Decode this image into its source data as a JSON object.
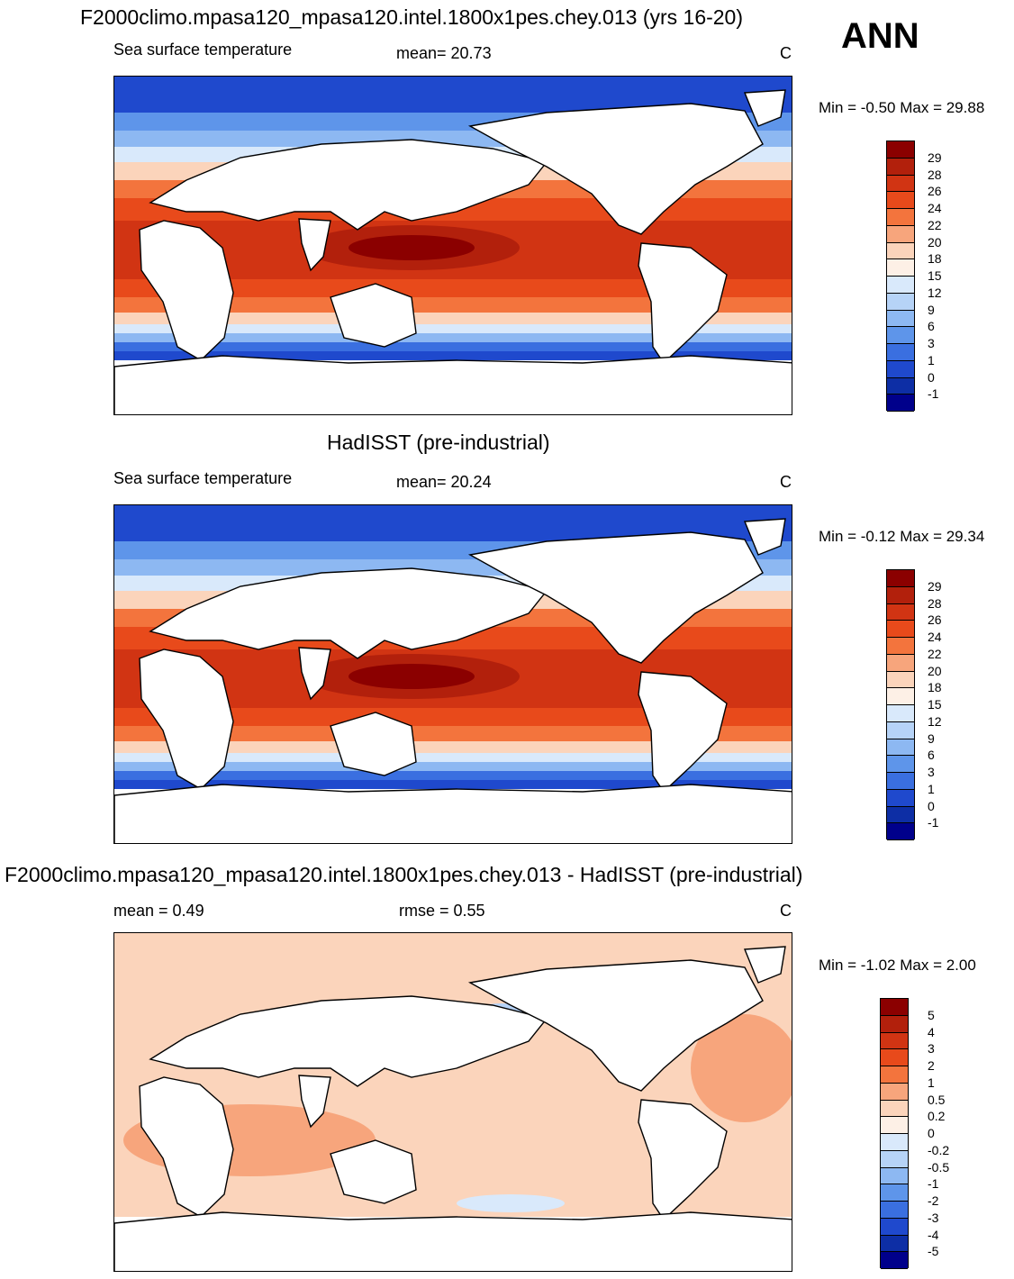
{
  "season": "ANN",
  "panels": [
    {
      "title": "F2000climo.mpasa120_mpasa120.intel.1800x1pes.chey.013 (yrs 16-20)",
      "left_label": "Sea surface temperature",
      "center_label": "mean=  20.73",
      "right_label": "C",
      "minmax": "Min =  -0.50 Max =  29.88"
    },
    {
      "title": "HadISST (pre-industrial)",
      "left_label": "Sea surface temperature",
      "center_label": "mean=  20.24",
      "right_label": "C",
      "minmax": "Min =  -0.12 Max =  29.34"
    },
    {
      "title": "F2000climo.mpasa120_mpasa120.intel.1800x1pes.chey.013 - HadISST (pre-industrial)",
      "left_label": "mean =   0.49",
      "center_label": "rmse =   0.55",
      "right_label": "C",
      "minmax": "Min =  -1.02 Max =   2.00"
    }
  ],
  "sst_colorbar": {
    "labels": [
      "29",
      "28",
      "26",
      "24",
      "22",
      "20",
      "18",
      "15",
      "12",
      "9",
      "6",
      "3",
      "1",
      "0",
      "-1"
    ],
    "colors": [
      "#8b0000",
      "#b2200c",
      "#d13413",
      "#e84a1b",
      "#f3743d",
      "#f7a57c",
      "#fbd4bb",
      "#fdf0e6",
      "#d9e9fb",
      "#b6d3f7",
      "#8db8f2",
      "#5e95ea",
      "#3a6fe0",
      "#1f49cd",
      "#0d2ea5",
      "#00008b"
    ]
  },
  "diff_colorbar": {
    "labels": [
      "5",
      "4",
      "3",
      "2",
      "1",
      "0.5",
      "0.2",
      "0",
      "-0.2",
      "-0.5",
      "-1",
      "-2",
      "-3",
      "-4",
      "-5"
    ],
    "colors": [
      "#8b0000",
      "#b2200c",
      "#d13413",
      "#e84a1b",
      "#f3743d",
      "#f7a57c",
      "#fbd4bb",
      "#fdf0e6",
      "#d9e9fb",
      "#b6d3f7",
      "#8db8f2",
      "#5e95ea",
      "#3a6fe0",
      "#1f49cd",
      "#0d2ea5",
      "#00008b"
    ]
  }
}
